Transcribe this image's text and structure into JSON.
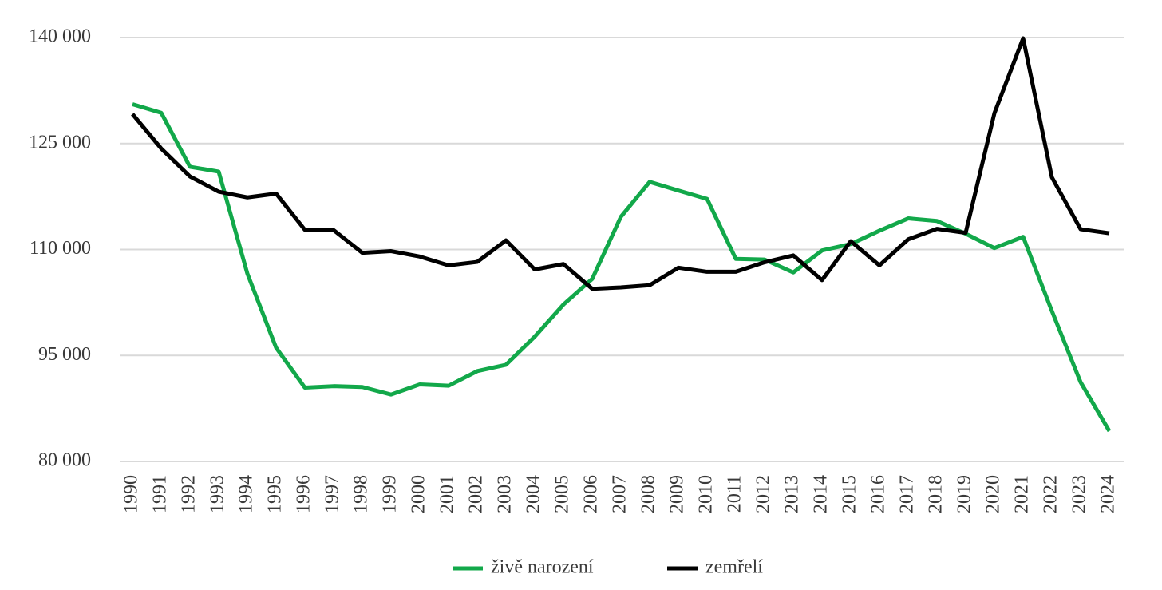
{
  "chart_data": {
    "type": "line",
    "x": [
      "1990",
      "1991",
      "1992",
      "1993",
      "1994",
      "1995",
      "1996",
      "1997",
      "1998",
      "1999",
      "2000",
      "2001",
      "2002",
      "2003",
      "2004",
      "2005",
      "2006",
      "2007",
      "2008",
      "2009",
      "2010",
      "2011",
      "2012",
      "2013",
      "2014",
      "2015",
      "2016",
      "2017",
      "2018",
      "2019",
      "2020",
      "2021",
      "2022",
      "2023",
      "2024"
    ],
    "series": [
      {
        "name": "živě narození",
        "color": "#12a84a",
        "values": [
          130564,
          129354,
          121705,
          121025,
          106579,
          96097,
          90446,
          90657,
          90535,
          89471,
          90910,
          90715,
          92786,
          93685,
          97664,
          102211,
          105831,
          114632,
          119570,
          118348,
          117153,
          108673,
          108576,
          106751,
          109860,
          110764,
          112663,
          114405,
          114036,
          112231,
          110200,
          111793,
          101299,
          91222,
          84311
        ]
      },
      {
        "name": "zemřelí",
        "color": "#000000",
        "values": [
          129166,
          124290,
          120337,
          118185,
          117373,
          117913,
          112782,
          112744,
          109527,
          109768,
          109001,
          107755,
          108243,
          111288,
          107177,
          107938,
          104441,
          104636,
          104948,
          107421,
          106844,
          106848,
          108189,
          109160,
          105665,
          111173,
          107750,
          111443,
          112920,
          112362,
          129289,
          139891,
          120219,
          112875,
          112300
        ]
      }
    ],
    "ylim": [
      80000,
      140000
    ],
    "yticks": [
      {
        "value": 80000,
        "label": "80 000"
      },
      {
        "value": 95000,
        "label": "95 000"
      },
      {
        "value": 110000,
        "label": "110 000"
      },
      {
        "value": 125000,
        "label": "125 000"
      },
      {
        "value": 140000,
        "label": "140 000"
      }
    ],
    "grid": true,
    "legend": "bottom"
  }
}
